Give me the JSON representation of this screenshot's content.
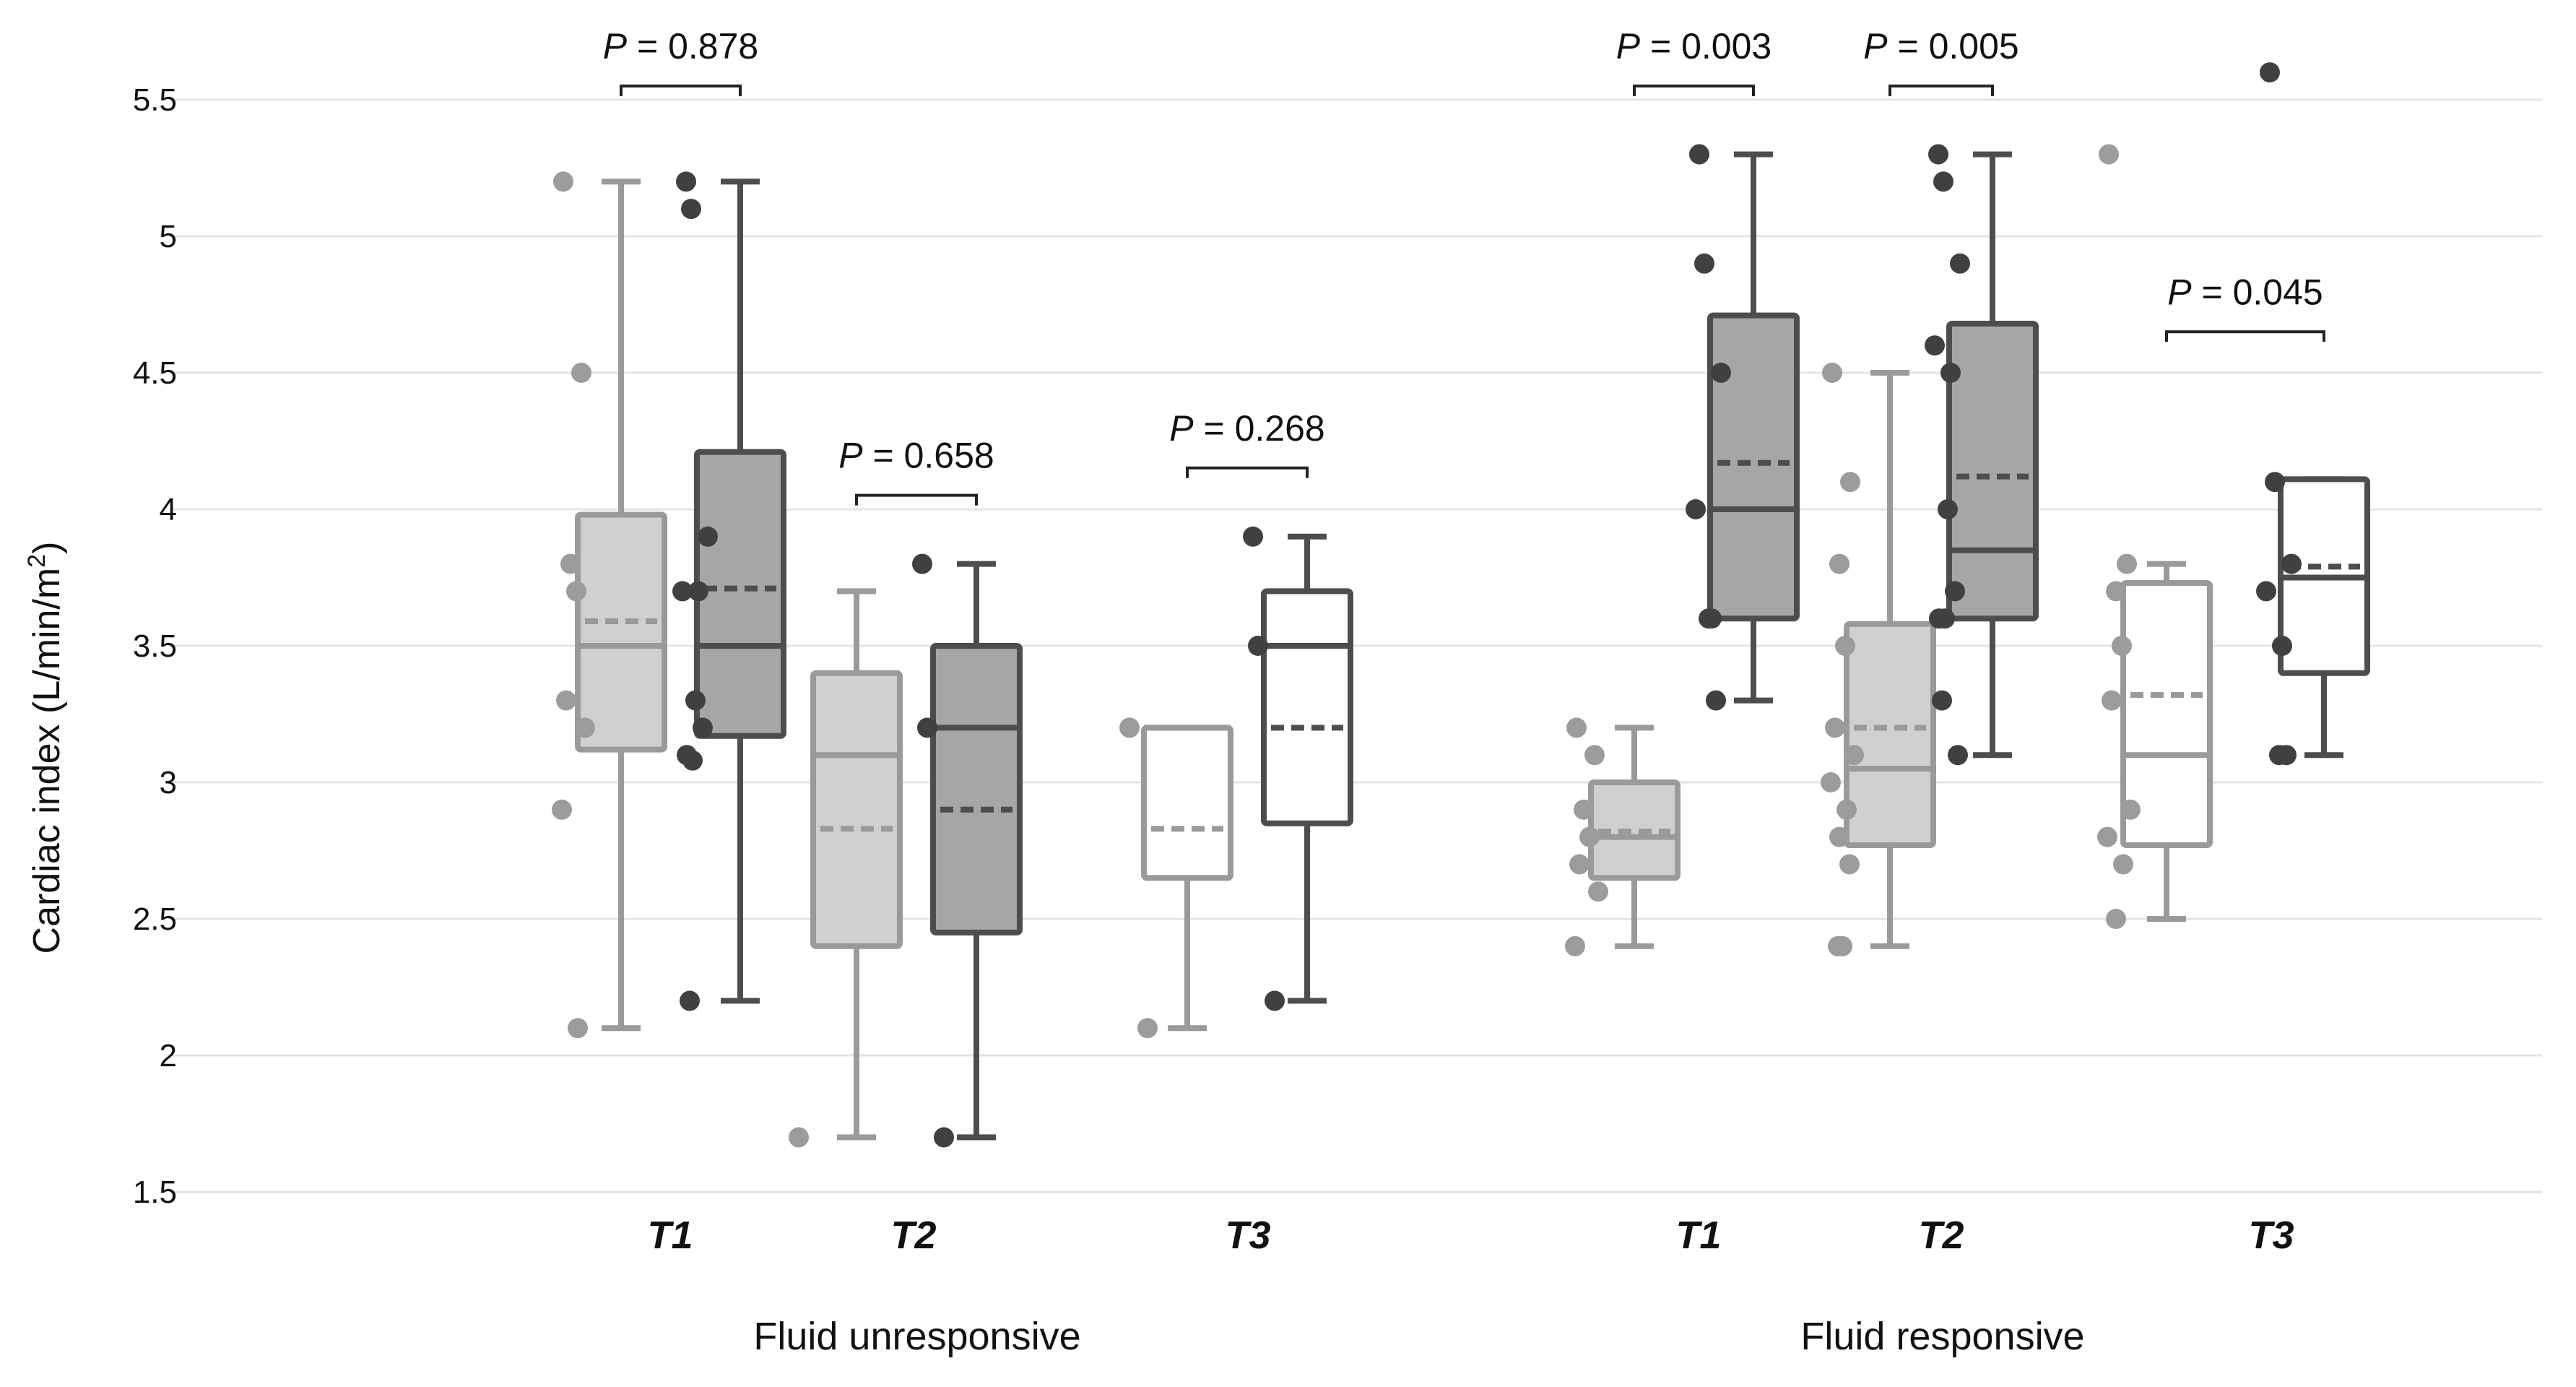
{
  "chart_data": {
    "type": "box",
    "ylabel": "Cardiac index (L/min/m²)",
    "ylabel_base": "Cardiac index (L/min/m",
    "ylabel_sup": "2",
    "ylabel_close": ")",
    "ylim": [
      1.5,
      5.5
    ],
    "yticks": [
      "1.5",
      "2",
      "2.5",
      "3",
      "3.5",
      "4",
      "4.5",
      "5",
      "5.5"
    ],
    "grid": true,
    "colors": {
      "light_edge": "#9a9a9a",
      "light_fill": "#d0d0d0",
      "dark_edge": "#4d4d4d",
      "dark_fill": "#a6a6a6",
      "open_fill": "#ffffff",
      "light_point": "#9c9c9c",
      "dark_point": "#404040",
      "grid": "#e4e4e4"
    },
    "groups": [
      {
        "label": "Fluid unresponsive",
        "timepoints": [
          {
            "label": "T1",
            "p_prefix": "P",
            "p_value": "= 0.878",
            "boxes": [
              {
                "style": "light",
                "min": 2.1,
                "q1": 3.12,
                "median": 3.5,
                "q3": 3.98,
                "max": 5.2,
                "mean": 3.59,
                "points": [
                  5.2,
                  4.5,
                  3.8,
                  3.7,
                  3.3,
                  3.2,
                  2.9,
                  2.1
                ]
              },
              {
                "style": "dark",
                "min": 2.2,
                "q1": 3.17,
                "median": 3.5,
                "q3": 4.21,
                "max": 5.2,
                "mean": 3.71,
                "points": [
                  5.2,
                  5.1,
                  3.9,
                  3.7,
                  3.7,
                  3.3,
                  3.2,
                  3.1,
                  3.08,
                  2.2
                ]
              }
            ]
          },
          {
            "label": "T2",
            "p_prefix": "P",
            "p_value": "= 0.658",
            "boxes": [
              {
                "style": "light",
                "min": 1.7,
                "q1": 2.4,
                "median": 3.1,
                "q3": 3.4,
                "max": 3.7,
                "mean": 2.83,
                "points": [
                  1.7
                ]
              },
              {
                "style": "dark",
                "min": 1.7,
                "q1": 2.45,
                "median": 3.2,
                "q3": 3.5,
                "max": 3.8,
                "mean": 2.9,
                "points": [
                  3.8,
                  3.2,
                  1.7
                ]
              }
            ]
          },
          {
            "label": "T3",
            "p_prefix": "P",
            "p_value": "= 0.268",
            "boxes": [
              {
                "style": "light-open",
                "min": 2.1,
                "q1": 2.65,
                "median": 3.2,
                "q3": 3.2,
                "max": 3.2,
                "mean": 2.83,
                "points": [
                  3.2,
                  2.1
                ]
              },
              {
                "style": "dark-open",
                "min": 2.2,
                "q1": 2.85,
                "median": 3.5,
                "q3": 3.7,
                "max": 3.9,
                "mean": 3.2,
                "points": [
                  3.9,
                  3.5,
                  2.2
                ]
              }
            ]
          }
        ]
      },
      {
        "label": "Fluid responsive",
        "timepoints": [
          {
            "label": "T1",
            "p_prefix": "P",
            "p_value": "= 0.003",
            "boxes": [
              {
                "style": "light",
                "min": 2.4,
                "q1": 2.65,
                "median": 2.8,
                "q3": 3.0,
                "max": 3.2,
                "mean": 2.82,
                "points": [
                  3.2,
                  3.1,
                  2.9,
                  2.8,
                  2.7,
                  2.6,
                  2.4
                ]
              },
              {
                "style": "dark",
                "min": 3.3,
                "q1": 3.6,
                "median": 4.0,
                "q3": 4.71,
                "max": 5.3,
                "mean": 4.17,
                "points": [
                  5.3,
                  4.9,
                  4.5,
                  4.0,
                  3.6,
                  3.6,
                  3.3
                ]
              }
            ]
          },
          {
            "label": "T2",
            "p_prefix": "P",
            "p_value": "= 0.005",
            "boxes": [
              {
                "style": "light",
                "min": 2.4,
                "q1": 2.77,
                "median": 3.05,
                "q3": 3.58,
                "max": 4.5,
                "mean": 3.2,
                "points": [
                  4.5,
                  4.1,
                  3.8,
                  3.5,
                  3.2,
                  3.1,
                  3.0,
                  2.9,
                  2.8,
                  2.7,
                  2.4,
                  2.4
                ]
              },
              {
                "style": "dark",
                "min": 3.1,
                "q1": 3.6,
                "median": 3.85,
                "q3": 4.68,
                "max": 5.3,
                "mean": 4.12,
                "points": [
                  5.3,
                  5.2,
                  4.9,
                  4.6,
                  4.5,
                  4.0,
                  3.7,
                  3.6,
                  3.6,
                  3.3,
                  3.1
                ]
              }
            ]
          },
          {
            "label": "T3",
            "p_prefix": "P",
            "p_value": "= 0.045",
            "boxes": [
              {
                "style": "light-open",
                "min": 2.5,
                "q1": 2.77,
                "median": 3.1,
                "q3": 3.73,
                "max": 3.8,
                "mean": 3.32,
                "points": [
                  5.3,
                  3.8,
                  3.7,
                  3.5,
                  3.3,
                  2.9,
                  2.8,
                  2.7,
                  2.5
                ]
              },
              {
                "style": "dark-open",
                "min": 3.1,
                "q1": 3.4,
                "median": 3.75,
                "q3": 4.11,
                "max": 4.11,
                "mean": 3.79,
                "points": [
                  5.6,
                  4.1,
                  3.8,
                  3.7,
                  3.5,
                  3.1,
                  3.1
                ]
              }
            ]
          }
        ]
      }
    ]
  }
}
